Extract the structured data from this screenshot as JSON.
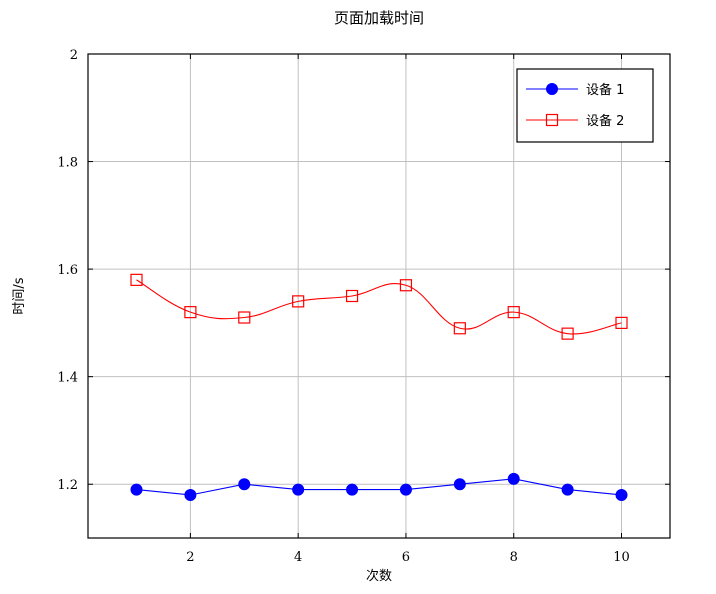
{
  "chart_data": {
    "type": "line",
    "title": "页面加载时间",
    "xlabel": "次数",
    "ylabel": "时间/s",
    "x": [
      1,
      2,
      3,
      4,
      5,
      6,
      7,
      8,
      9,
      10
    ],
    "xlim": [
      0.1,
      10.9
    ],
    "ylim": [
      1.1,
      2.0
    ],
    "xticks": [
      2,
      4,
      6,
      8,
      10
    ],
    "yticks": [
      1.2,
      1.4,
      1.6,
      1.8,
      2.0
    ],
    "ytick_labels": [
      "1.2",
      "1.4",
      "1.6",
      "1.8",
      "2"
    ],
    "grid": true,
    "legend_position": "top-right",
    "series": [
      {
        "name": "设备 1",
        "values": [
          1.19,
          1.18,
          1.2,
          1.19,
          1.19,
          1.19,
          1.2,
          1.21,
          1.19,
          1.18
        ],
        "color": "#0000ff",
        "marker": "filled-circle"
      },
      {
        "name": "设备 2",
        "values": [
          1.58,
          1.52,
          1.51,
          1.54,
          1.55,
          1.57,
          1.49,
          1.52,
          1.48,
          1.5
        ],
        "color": "#ff0000",
        "marker": "open-square"
      }
    ]
  }
}
